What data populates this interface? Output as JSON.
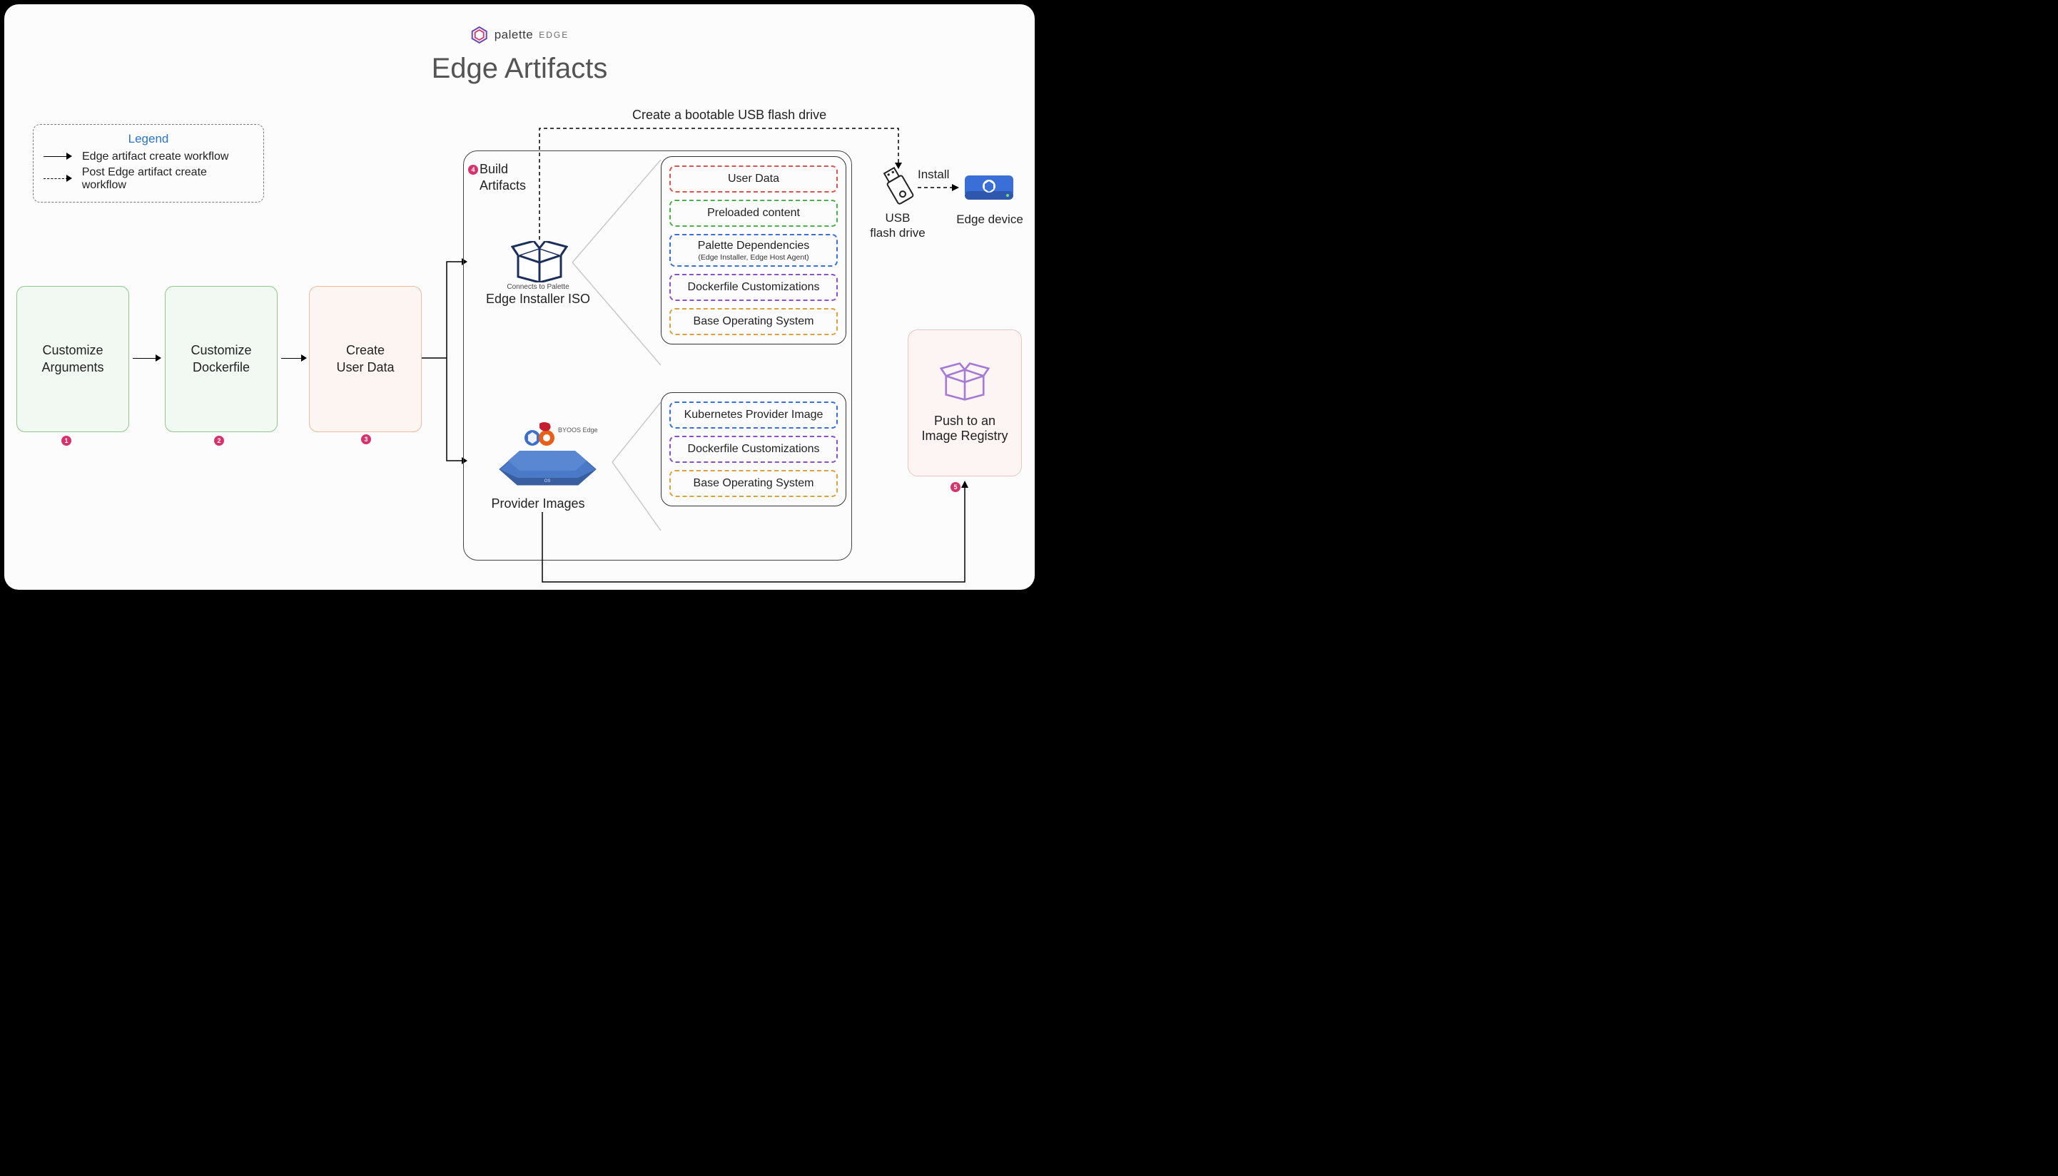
{
  "brand": {
    "name": "palette",
    "sub": "EDGE"
  },
  "title": "Edge Artifacts",
  "legend": {
    "title": "Legend",
    "solid": "Edge artifact create workflow",
    "dashed": "Post Edge artifact create workflow"
  },
  "steps": {
    "s1": {
      "l1": "Customize",
      "l2": "Arguments",
      "num": "1"
    },
    "s2": {
      "l1": "Customize",
      "l2": "Dockerfile",
      "num": "2"
    },
    "s3": {
      "l1": "Create",
      "l2": "User Data",
      "num": "3"
    },
    "s4": {
      "l1": "Build",
      "l2": "Artifacts",
      "num": "4"
    },
    "s5": {
      "l1": "Push to an",
      "l2": "Image Registry",
      "num": "5"
    }
  },
  "iso": {
    "note": "Connects to Palette",
    "label": "Edge Installer ISO"
  },
  "provider": {
    "label": "Provider Images",
    "byoos": "BYOOS Edge"
  },
  "stack_top": {
    "items": [
      {
        "text": "User Data",
        "color": "#d9534f"
      },
      {
        "text": "Preloaded content",
        "color": "#4cae4c"
      },
      {
        "text": "Palette Dependencies",
        "sub": "(Edge Installer, Edge Host Agent)",
        "color": "#3b6fd8",
        "tall": true
      },
      {
        "text": "Dockerfile Customizations",
        "color": "#8a4fc9"
      },
      {
        "text": "Base Operating System",
        "color": "#d9a23f"
      }
    ]
  },
  "stack_bot": {
    "items": [
      {
        "text": "Kubernetes Provider Image",
        "color": "#3b6fd8"
      },
      {
        "text": "Dockerfile Customizations",
        "color": "#8a4fc9"
      },
      {
        "text": "Base Operating System",
        "color": "#d9a23f"
      }
    ]
  },
  "right": {
    "install": "Install",
    "usb": "USB\nflash drive",
    "device": "Edge device",
    "create_usb": "Create a bootable USB flash drive"
  },
  "colors": {
    "bg": "#fcfcfd",
    "step_green_bg": "#f2f9f2",
    "step_green_border": "#8fc78c",
    "step_orange_bg": "#fdf5f1",
    "step_orange_border": "#f2b998",
    "registry_bg": "#fdf5f4",
    "registry_border": "#e8c5c0",
    "magenta": "#d6336c"
  }
}
